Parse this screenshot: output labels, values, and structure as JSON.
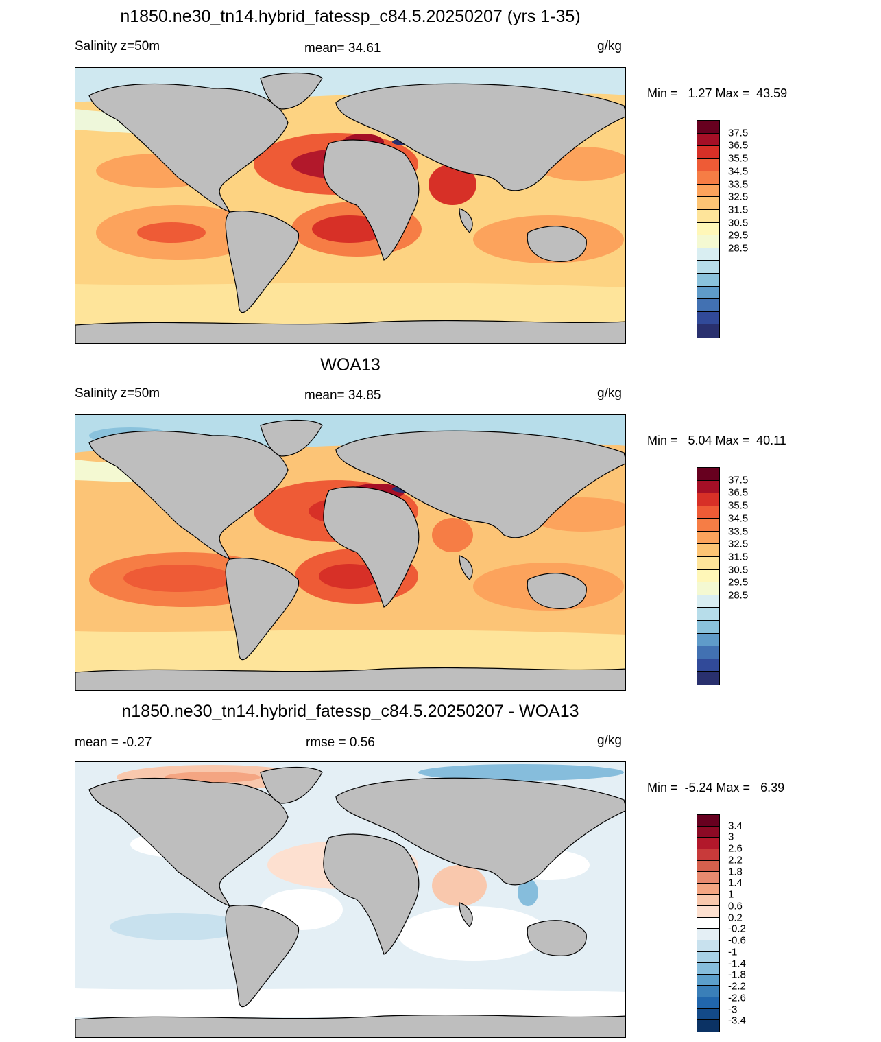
{
  "panels": [
    {
      "title": "n1850.ne30_tn14.hybrid_fatessp_c84.5.20250207 (yrs 1-35)",
      "left_label": "Salinity z=50m",
      "center_label": "mean=  34.61",
      "units": "g/kg",
      "minmax": "Min =   1.27 Max =  43.59",
      "colorbar": {
        "labels": [
          "37.5",
          "36.5",
          "35.5",
          "34.5",
          "33.5",
          "32.5",
          "31.5",
          "30.5",
          "29.5",
          "28.5"
        ],
        "colors": [
          "#67001f",
          "#a50f26",
          "#d73027",
          "#ee5b36",
          "#f67d45",
          "#fca35c",
          "#fdc474",
          "#fee49a",
          "#fff7b8",
          "#f4f9d2",
          "#d9eef2",
          "#b7ddea",
          "#8ac2dc",
          "#5f9bc9",
          "#4271b2",
          "#314a99",
          "#29306e"
        ]
      }
    },
    {
      "title": "WOA13",
      "left_label": "Salinity z=50m",
      "center_label": "mean=  34.85",
      "units": "g/kg",
      "minmax": "Min =   5.04 Max =  40.11",
      "colorbar": {
        "labels": [
          "37.5",
          "36.5",
          "35.5",
          "34.5",
          "33.5",
          "32.5",
          "31.5",
          "30.5",
          "29.5",
          "28.5"
        ],
        "colors": [
          "#67001f",
          "#a50f26",
          "#d73027",
          "#ee5b36",
          "#f67d45",
          "#fca35c",
          "#fdc474",
          "#fee49a",
          "#fff7b8",
          "#f4f9d2",
          "#d9eef2",
          "#b7ddea",
          "#8ac2dc",
          "#5f9bc9",
          "#4271b2",
          "#314a99",
          "#29306e"
        ]
      }
    },
    {
      "title": "n1850.ne30_tn14.hybrid_fatessp_c84.5.20250207 - WOA13",
      "left_label": "mean =  -0.27",
      "center_label": "rmse =   0.56",
      "units": "g/kg",
      "minmax": "Min =  -5.24 Max =   6.39",
      "colorbar": {
        "labels": [
          "3.4",
          "3",
          "2.6",
          "2.2",
          "1.8",
          "1.4",
          "1",
          "0.6",
          "0.2",
          "-0.2",
          "-0.6",
          "-1",
          "-1.4",
          "-1.8",
          "-2.2",
          "-2.6",
          "-3",
          "-3.4"
        ],
        "colors": [
          "#67001f",
          "#8c0a25",
          "#b2182b",
          "#c83a3a",
          "#d6604d",
          "#e88a6f",
          "#f4a582",
          "#f9c8ad",
          "#fde0d0",
          "#ffffff",
          "#e4eff5",
          "#c8e1ee",
          "#a8d1e6",
          "#86bddc",
          "#5c9fcb",
          "#3a7fb8",
          "#2166ac",
          "#134a88",
          "#0b3264"
        ]
      }
    }
  ],
  "colors": {
    "land": "#bebebe",
    "ocean_base_model": "#fdd382",
    "ocean_base_woa": "#fcc476",
    "ocean_base_diff": "#e6f0f7"
  }
}
